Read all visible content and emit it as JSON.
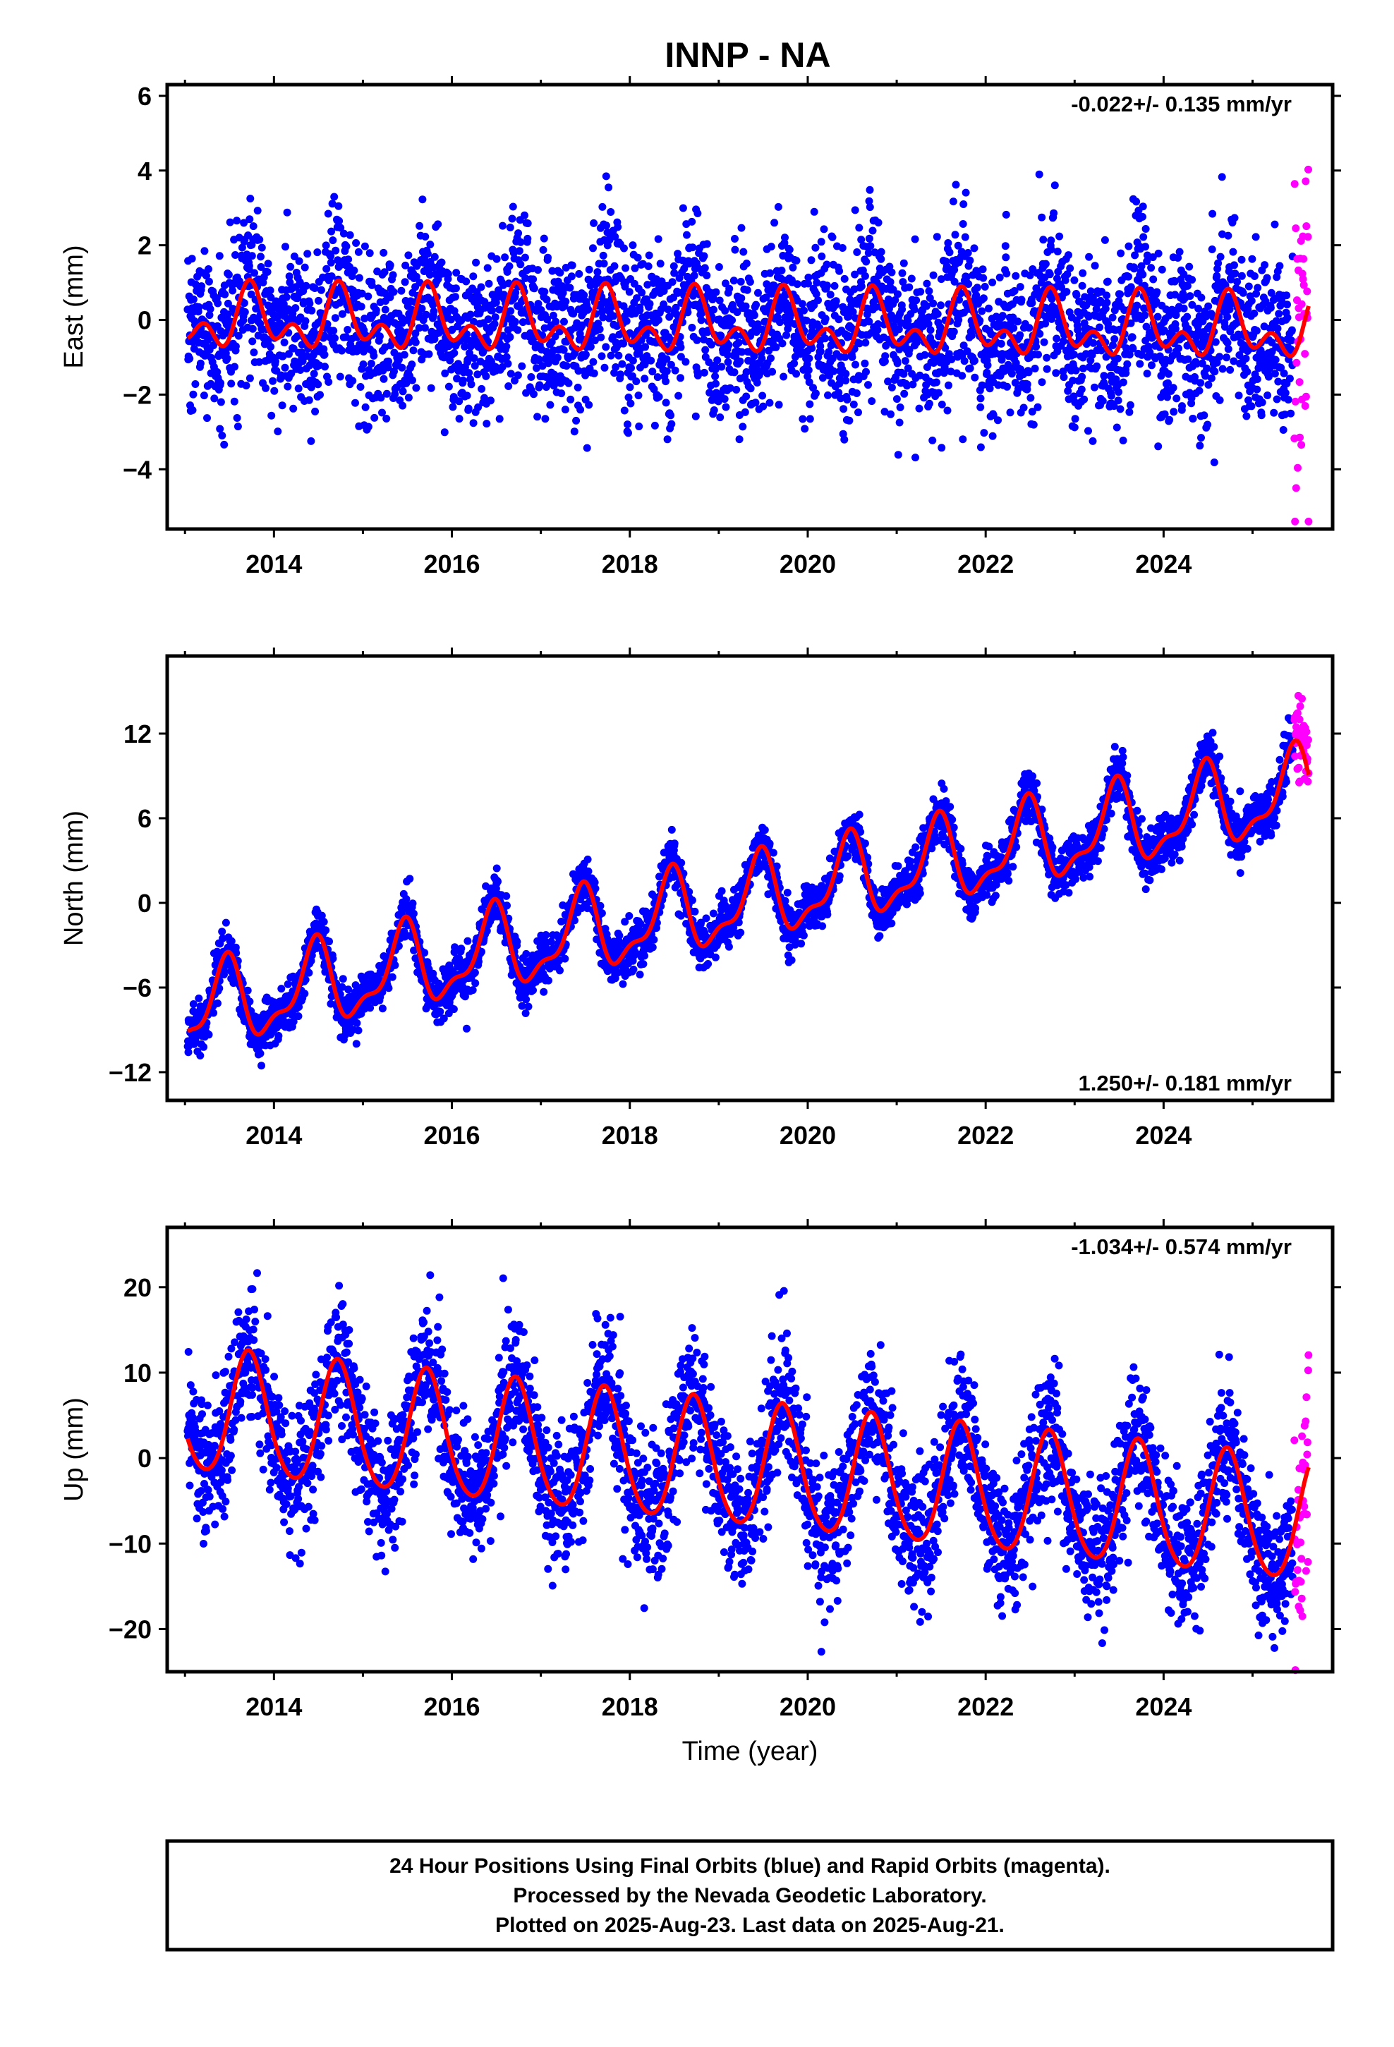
{
  "title": "INNP - NA",
  "chart_data": [
    {
      "type": "scatter",
      "ylabel": "East (mm)",
      "xlim": [
        2012.8,
        2025.9
      ],
      "ylim": [
        -5.6,
        6.3
      ],
      "yticks": [
        "6",
        "4",
        "2",
        "0",
        "−2",
        "−4"
      ],
      "ytick_values": [
        6,
        4,
        2,
        0,
        -2,
        -4
      ],
      "xticks": [
        "2014",
        "2016",
        "2018",
        "2020",
        "2022",
        "2024"
      ],
      "xtick_values": [
        2014,
        2016,
        2018,
        2020,
        2022,
        2024
      ],
      "rate": "-0.022+/- 0.135 mm/yr",
      "rate_position": "top-right",
      "model": {
        "trend": -0.022,
        "annual_amp": 0.6,
        "annual_phase_year": 2013.75,
        "semiannual_amp": 0.5,
        "semiannual_phase_year": 2013.72,
        "offset": 0.0
      },
      "scatter_sigma": 1.1,
      "series": [
        {
          "color": "#0000ff",
          "x_start": 2013.03,
          "x_end": 2025.45,
          "count": 3600
        },
        {
          "color": "#ff00ff",
          "x_start": 2025.47,
          "x_end": 2025.63,
          "count": 40
        }
      ],
      "fit_color": "#ff0000",
      "grid": false
    },
    {
      "type": "scatter",
      "ylabel": "North (mm)",
      "xlim": [
        2012.8,
        2025.9
      ],
      "ylim": [
        -14,
        17.5
      ],
      "yticks": [
        "12",
        "6",
        "0",
        "−6",
        "−12"
      ],
      "ytick_values": [
        12,
        6,
        0,
        -6,
        -12
      ],
      "xticks": [
        "2014",
        "2016",
        "2018",
        "2020",
        "2022",
        "2024"
      ],
      "xtick_values": [
        2014,
        2016,
        2018,
        2020,
        2022,
        2024
      ],
      "rate": "1.250+/- 0.181 mm/yr",
      "rate_position": "bottom-right",
      "model": {
        "trend": 1.25,
        "annual_amp": 2.7,
        "annual_phase_year": 2013.45,
        "semiannual_amp": 1.1,
        "semiannual_phase_year": 2013.5,
        "offset": -7.8
      },
      "scatter_sigma": 0.9,
      "series": [
        {
          "color": "#0000ff",
          "x_start": 2013.03,
          "x_end": 2025.45,
          "count": 3600
        },
        {
          "color": "#ff00ff",
          "x_start": 2025.47,
          "x_end": 2025.63,
          "count": 40
        }
      ],
      "fit_color": "#ff0000",
      "grid": false
    },
    {
      "type": "scatter",
      "ylabel": "Up (mm)",
      "xlim": [
        2012.8,
        2025.9
      ],
      "ylim": [
        -25,
        27
      ],
      "yticks": [
        "20",
        "10",
        "0",
        "−10",
        "−20"
      ],
      "ytick_values": [
        20,
        10,
        0,
        -10,
        -20
      ],
      "xticks": [
        "2014",
        "2016",
        "2018",
        "2020",
        "2022",
        "2024"
      ],
      "xtick_values": [
        2014,
        2016,
        2018,
        2020,
        2022,
        2024
      ],
      "xlabel": "Time (year)",
      "rate": "-1.034+/- 0.574 mm/yr",
      "rate_position": "top-right",
      "model": {
        "trend": -1.034,
        "annual_amp": 7.2,
        "annual_phase_year": 2013.72,
        "semiannual_amp": 0.8,
        "semiannual_phase_year": 2013.7,
        "offset": 5.4
      },
      "scatter_sigma": 4.0,
      "series": [
        {
          "color": "#0000ff",
          "x_start": 2013.03,
          "x_end": 2025.45,
          "count": 3600
        },
        {
          "color": "#ff00ff",
          "x_start": 2025.47,
          "x_end": 2025.63,
          "count": 40
        }
      ],
      "fit_color": "#ff0000",
      "grid": false
    }
  ],
  "footer": {
    "line1": "24 Hour Positions Using Final Orbits (blue) and Rapid Orbits (magenta).",
    "line2": "Processed by the Nevada Geodetic Laboratory.",
    "line3": "Plotted on 2025-Aug-23. Last data on 2025-Aug-21."
  }
}
